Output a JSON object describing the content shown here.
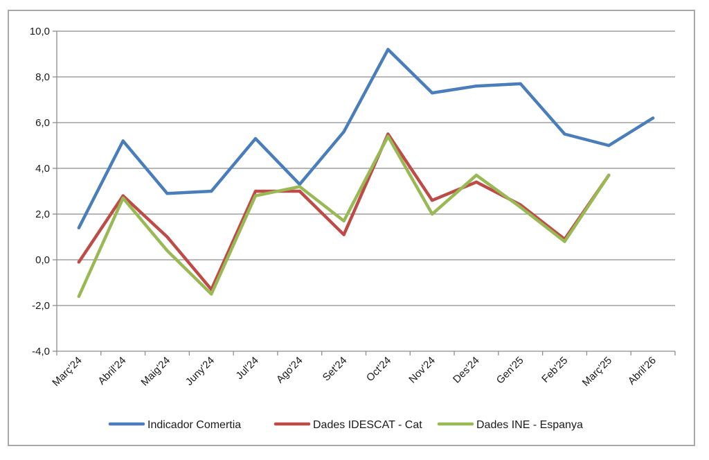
{
  "chart_data": {
    "type": "line",
    "title": "",
    "xlabel": "",
    "ylabel": "",
    "ylim": [
      -4,
      10
    ],
    "ytick_step": 2,
    "ytick_labels": [
      "-4,0",
      "-2,0",
      "0,0",
      "2,0",
      "4,0",
      "6,0",
      "8,0",
      "10,0"
    ],
    "grid": true,
    "legend_position": "bottom",
    "categories": [
      "Març'24",
      "Abril'24",
      "Maig'24",
      "Juny'24",
      "Jul'24",
      "Ago'24",
      "Set'24",
      "Oct'24",
      "Nov'24",
      "Des'24",
      "Gen'25",
      "Feb'25",
      "Març'25",
      "Abril'26"
    ],
    "series": [
      {
        "name": "Indicador Comertia",
        "color": "#4a7ebb",
        "values": [
          1.4,
          5.2,
          2.9,
          3.0,
          5.3,
          3.3,
          5.6,
          9.2,
          7.3,
          7.6,
          7.7,
          5.5,
          5.0,
          6.2
        ]
      },
      {
        "name": "Dades IDESCAT - Cat",
        "color": "#be4b48",
        "values": [
          -0.1,
          2.8,
          1.0,
          -1.3,
          3.0,
          3.0,
          1.1,
          5.5,
          2.6,
          3.4,
          2.4,
          0.9,
          3.7,
          null
        ]
      },
      {
        "name": "Dades INE - Espanya",
        "color": "#98b954",
        "values": [
          -1.6,
          2.7,
          0.4,
          -1.5,
          2.8,
          3.2,
          1.7,
          5.4,
          2.0,
          3.7,
          2.3,
          0.8,
          3.7,
          null
        ]
      }
    ]
  }
}
